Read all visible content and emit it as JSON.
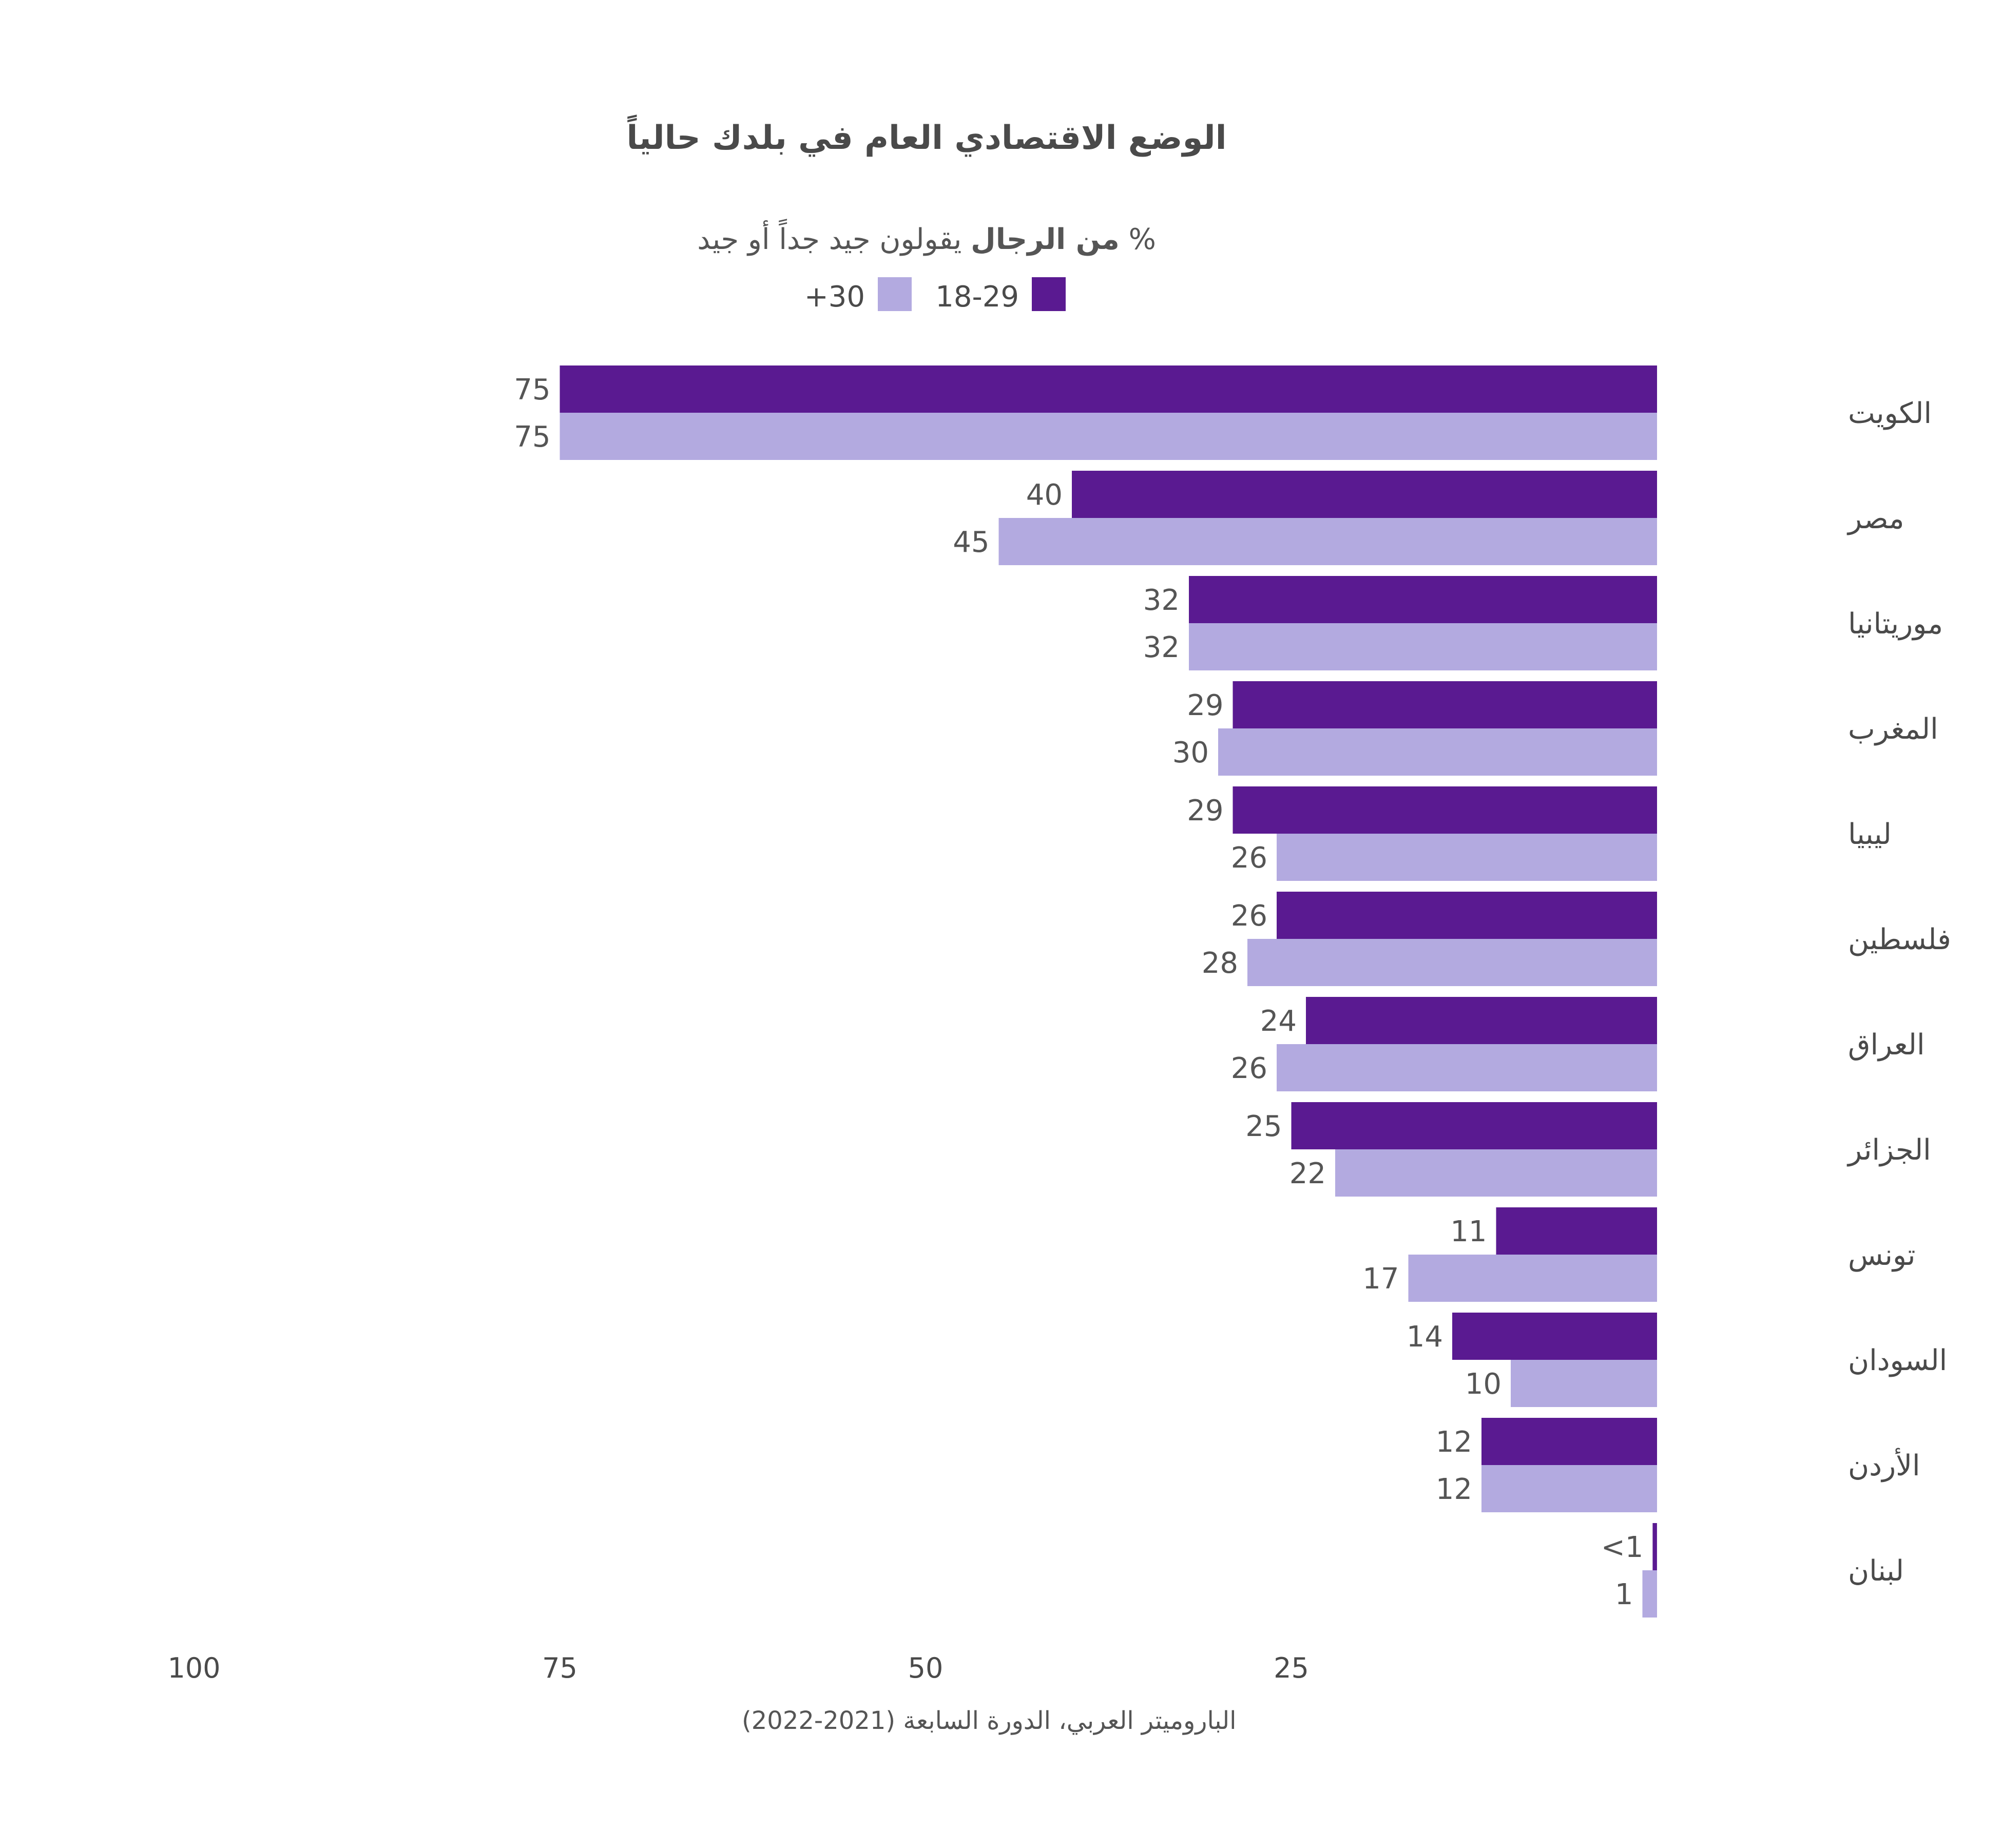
{
  "chart_data": {
    "type": "bar",
    "orientation": "horizontal",
    "direction": "right-to-left",
    "title": "الوضع الاقتصادي العام في بلدك حالياً",
    "subtitle": {
      "prefix": "% ",
      "bold": "من الرجال",
      "rest": " يقولون جيد جداً أو جيد"
    },
    "legend_placement": "top-center",
    "categories": [
      "الكويت",
      "مصر",
      "موريتانيا",
      "المغرب",
      "ليبيا",
      "فلسطين",
      "العراق",
      "الجزائر",
      "تونس",
      "السودان",
      "الأردن",
      "لبنان"
    ],
    "series": [
      {
        "name": "18-29",
        "color": "#5a1a91",
        "values": [
          75,
          40,
          32,
          29,
          29,
          26,
          24,
          25,
          11,
          14,
          12,
          0.3
        ],
        "labels": [
          "75",
          "40",
          "32",
          "29",
          "29",
          "26",
          "24",
          "25",
          "11",
          "14",
          "12",
          "<1"
        ]
      },
      {
        "name": "+30",
        "color": "#b3aae0",
        "values": [
          75,
          45,
          32,
          30,
          26,
          28,
          26,
          22,
          17,
          10,
          12,
          1
        ],
        "labels": [
          "75",
          "45",
          "32",
          "30",
          "26",
          "28",
          "26",
          "22",
          "17",
          "10",
          "12",
          "1"
        ]
      }
    ],
    "xlim": [
      0,
      100
    ],
    "xticks": [
      100,
      75,
      50,
      25
    ],
    "grid": false,
    "source": "الباروميتر العربي، الدورة السابعة (2021-2022)"
  }
}
